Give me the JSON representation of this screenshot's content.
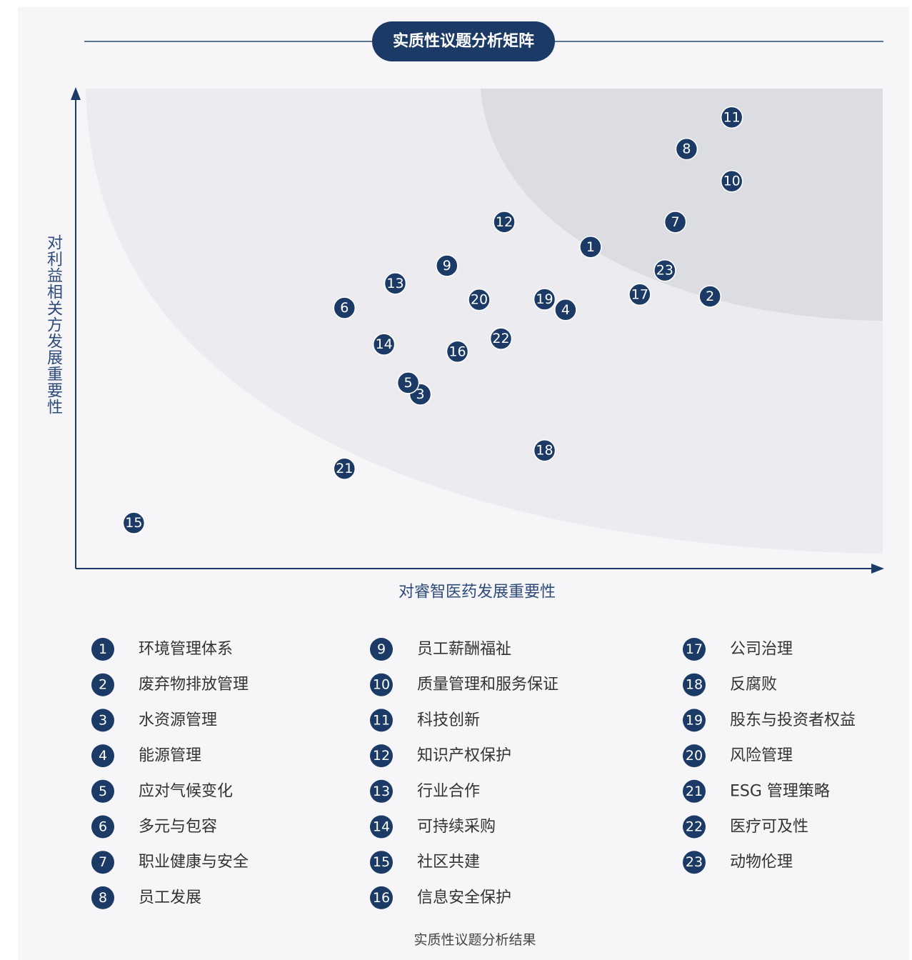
{
  "chart_data": {
    "type": "scatter",
    "title": "实质性议题分析矩阵",
    "xlabel": "对睿智医药发展重要性",
    "ylabel": "对利益相关方发展重要性",
    "xlim": [
      0,
      100
    ],
    "ylim": [
      0,
      100
    ],
    "color": "#1b3a66",
    "point_labels": [
      "1",
      "2",
      "3",
      "4",
      "5",
      "6",
      "7",
      "8",
      "9",
      "10",
      "11",
      "12",
      "13",
      "14",
      "15",
      "16",
      "17",
      "18",
      "19",
      "20",
      "21",
      "22",
      "23"
    ],
    "x": [
      63.8,
      78.6,
      42.7,
      60.7,
      41.2,
      33.3,
      74.3,
      75.7,
      46.0,
      81.3,
      81.3,
      53.1,
      39.6,
      38.2,
      7.2,
      47.3,
      69.9,
      58.1,
      58.1,
      50.0,
      33.3,
      52.7,
      73.0
    ],
    "values": [
      67.0,
      56.7,
      36.3,
      53.9,
      38.7,
      54.3,
      72.2,
      87.4,
      63.1,
      80.7,
      94.0,
      72.2,
      59.4,
      46.7,
      9.5,
      45.2,
      57.1,
      24.6,
      56.1,
      56.0,
      20.8,
      47.9,
      62.1
    ],
    "legend": [
      {
        "number": "1",
        "name": "环境管理体系"
      },
      {
        "number": "2",
        "name": "废弃物排放管理"
      },
      {
        "number": "3",
        "name": "水资源管理"
      },
      {
        "number": "4",
        "name": "能源管理"
      },
      {
        "number": "5",
        "name": "应对气候变化"
      },
      {
        "number": "6",
        "name": "多元与包容"
      },
      {
        "number": "7",
        "name": "职业健康与安全"
      },
      {
        "number": "8",
        "name": "员工发展"
      },
      {
        "number": "9",
        "name": "员工薪酬福祉"
      },
      {
        "number": "10",
        "name": "质量管理和服务保证"
      },
      {
        "number": "11",
        "name": "科技创新"
      },
      {
        "number": "12",
        "name": "知识产权保护"
      },
      {
        "number": "13",
        "name": "行业合作"
      },
      {
        "number": "14",
        "name": "可持续采购"
      },
      {
        "number": "15",
        "name": "社区共建"
      },
      {
        "number": "16",
        "name": "信息安全保护"
      },
      {
        "number": "17",
        "name": "公司治理"
      },
      {
        "number": "18",
        "name": "反腐败"
      },
      {
        "number": "19",
        "name": "股东与投资者权益"
      },
      {
        "number": "20",
        "name": "风险管理"
      },
      {
        "number": "21",
        "name": "ESG 管理策略"
      },
      {
        "number": "22",
        "name": "医疗可及性"
      },
      {
        "number": "23",
        "name": "动物伦理"
      }
    ],
    "caption": "实质性议题分析结果"
  }
}
